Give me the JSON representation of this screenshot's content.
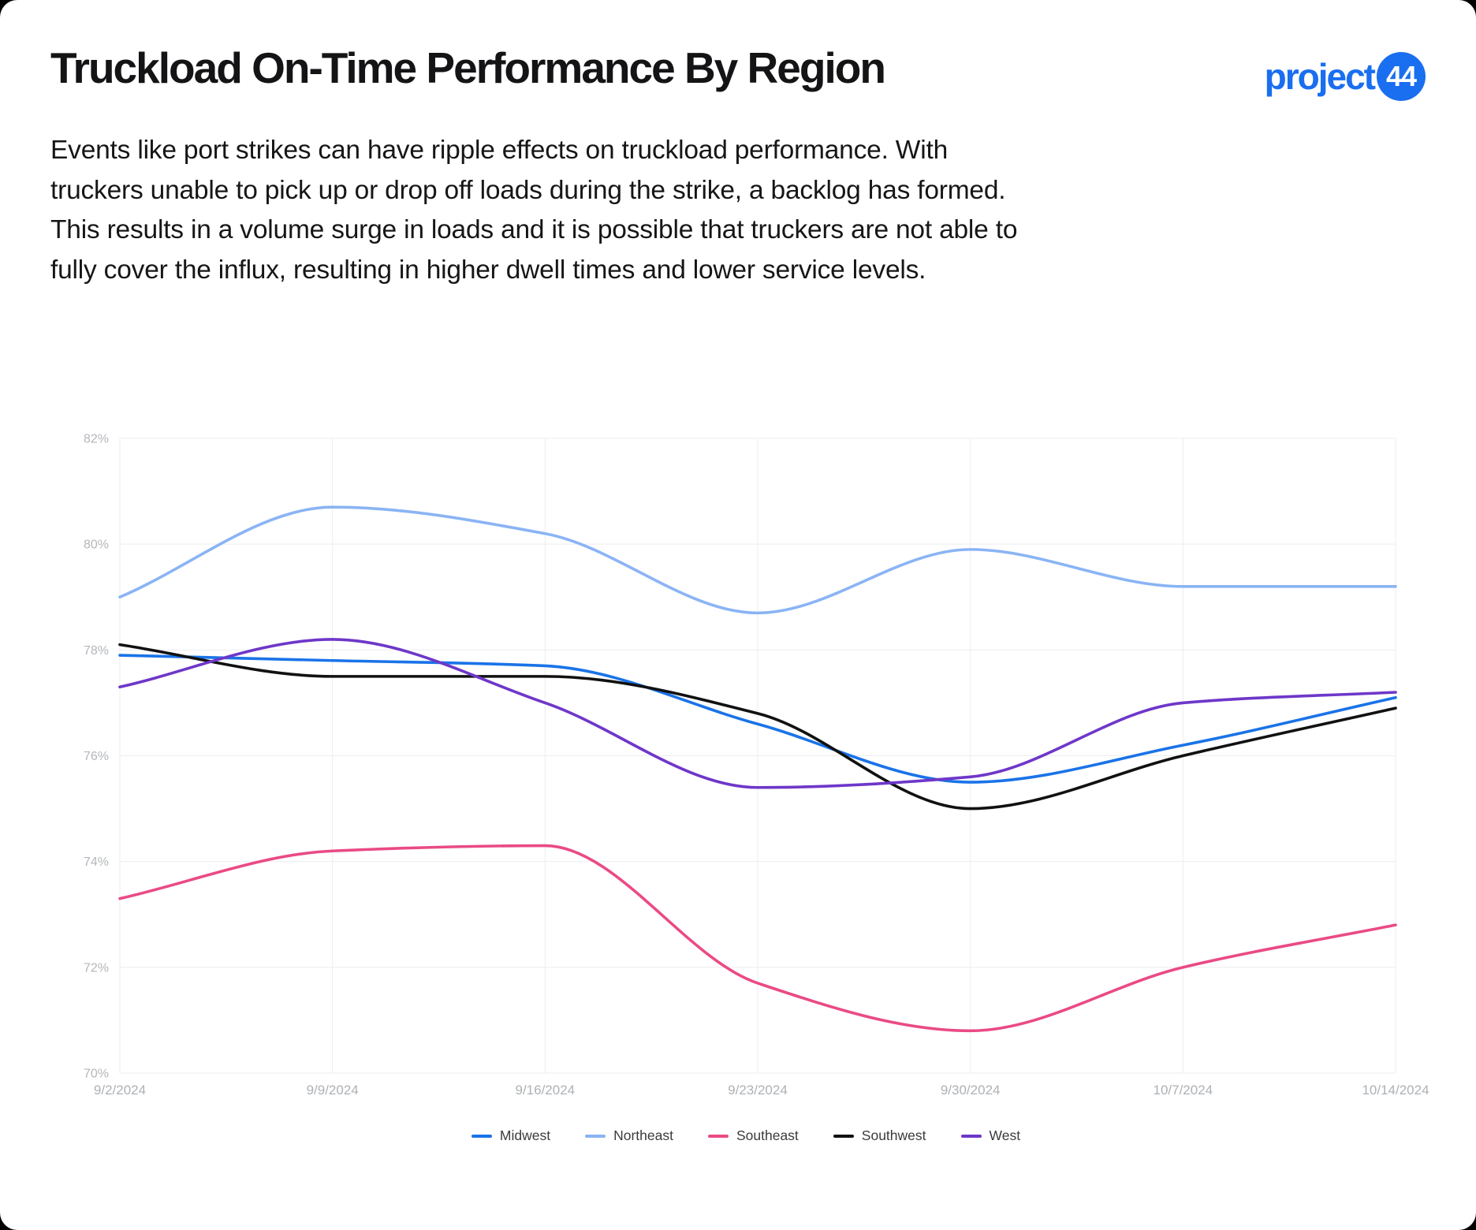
{
  "page": {
    "background": "#000000",
    "card_background": "#ffffff"
  },
  "header": {
    "title": "Truckload On-Time Performance By Region",
    "logo": {
      "text": "project",
      "badge": "44",
      "color": "#1a6ef0"
    }
  },
  "description": "Events like port strikes can have ripple effects on truckload performance. With truckers unable to pick up or drop off loads during the strike, a backlog has formed. This results in a volume surge in loads and it is possible that truckers are not able to fully cover the influx, resulting in higher dwell times and lower service levels.",
  "chart_data": {
    "type": "line",
    "x": [
      "9/2/2024",
      "9/9/2024",
      "9/16/2024",
      "9/23/2024",
      "9/30/2024",
      "10/7/2024",
      "10/14/2024"
    ],
    "series": [
      {
        "name": "Midwest",
        "color": "#1a73e8",
        "values": [
          77.9,
          77.8,
          77.7,
          76.6,
          75.5,
          76.2,
          77.1
        ]
      },
      {
        "name": "Northeast",
        "color": "#8ab4f4",
        "values": [
          79.0,
          80.7,
          80.2,
          78.7,
          79.9,
          79.2,
          79.2
        ]
      },
      {
        "name": "Southeast",
        "color": "#ea4a85",
        "values": [
          73.3,
          74.2,
          74.3,
          71.7,
          70.8,
          72.0,
          72.8
        ]
      },
      {
        "name": "Southwest",
        "color": "#111111",
        "values": [
          78.1,
          77.5,
          77.5,
          76.8,
          75.0,
          76.0,
          76.9
        ]
      },
      {
        "name": "West",
        "color": "#6e37c9",
        "values": [
          77.3,
          78.2,
          77.0,
          75.4,
          75.6,
          77.0,
          77.2
        ]
      }
    ],
    "ylim": [
      70,
      82
    ],
    "ytick_values": [
      82,
      80,
      78,
      76,
      74,
      72,
      70
    ],
    "ytick_labels": [
      "82%",
      "80%",
      "78%",
      "76%",
      "74%",
      "72%",
      "70%"
    ],
    "xlabel": "",
    "ylabel": "",
    "grid": true,
    "curve": "monotone",
    "legend_position": "bottom"
  }
}
